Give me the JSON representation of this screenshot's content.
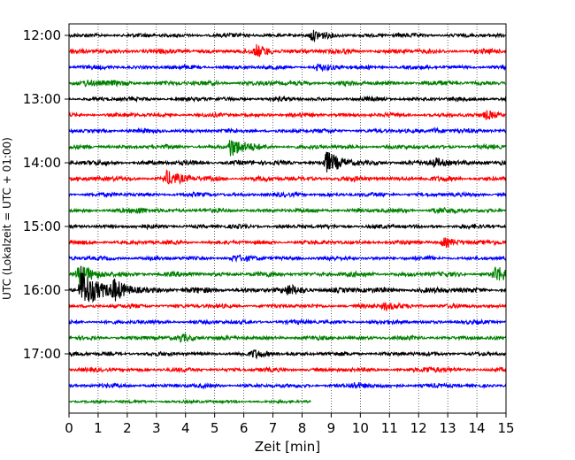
{
  "chart_data": {
    "type": "line",
    "title": "",
    "xlabel": "Zeit  [min]",
    "ylabel": "UTC (Lokalzeit = UTC + 01:00)",
    "xlim": [
      0,
      15
    ],
    "x_ticks": [
      "0",
      "1",
      "2",
      "3",
      "4",
      "5",
      "6",
      "7",
      "8",
      "9",
      "10",
      "11",
      "12",
      "13",
      "14",
      "15"
    ],
    "y_ticks": [
      {
        "label": "12:00",
        "trace": 0
      },
      {
        "label": "13:00",
        "trace": 4
      },
      {
        "label": "14:00",
        "trace": 8
      },
      {
        "label": "15:00",
        "trace": 12
      },
      {
        "label": "16:00",
        "trace": 16
      },
      {
        "label": "17:00",
        "trace": 20
      }
    ],
    "grid": "vertical dotted",
    "trace_interval_minutes": 15,
    "trace_colors": [
      "#000000",
      "#ff0000",
      "#0000ff",
      "#008000"
    ],
    "traces": [
      {
        "start": "12:00",
        "end_min": 15,
        "amp": 2.0,
        "events": [
          [
            8.3,
            5
          ]
        ]
      },
      {
        "start": "12:15",
        "end_min": 15,
        "amp": 2.5,
        "events": [
          [
            6.4,
            6
          ]
        ]
      },
      {
        "start": "12:30",
        "end_min": 15,
        "amp": 2.0,
        "events": [
          [
            8.5,
            3
          ]
        ]
      },
      {
        "start": "12:45",
        "end_min": 15,
        "amp": 2.5,
        "events": [
          [
            0.5,
            3
          ]
        ]
      },
      {
        "start": "13:00",
        "end_min": 15,
        "amp": 2.0,
        "events": []
      },
      {
        "start": "13:15",
        "end_min": 15,
        "amp": 2.0,
        "events": [
          [
            14.3,
            4
          ]
        ]
      },
      {
        "start": "13:30",
        "end_min": 15,
        "amp": 2.0,
        "events": [
          [
            12.5,
            3
          ]
        ]
      },
      {
        "start": "13:45",
        "end_min": 15,
        "amp": 2.0,
        "events": [
          [
            5.5,
            12
          ]
        ]
      },
      {
        "start": "14:00",
        "end_min": 15,
        "amp": 2.5,
        "events": [
          [
            8.8,
            12
          ],
          [
            12.5,
            5
          ]
        ]
      },
      {
        "start": "14:15",
        "end_min": 15,
        "amp": 2.5,
        "events": [
          [
            3.3,
            8
          ]
        ]
      },
      {
        "start": "14:30",
        "end_min": 15,
        "amp": 2.0,
        "events": []
      },
      {
        "start": "14:45",
        "end_min": 15,
        "amp": 2.0,
        "events": [
          [
            2.3,
            3
          ],
          [
            12.5,
            3
          ]
        ]
      },
      {
        "start": "15:00",
        "end_min": 15,
        "amp": 2.0,
        "events": []
      },
      {
        "start": "15:15",
        "end_min": 15,
        "amp": 2.0,
        "events": [
          [
            12.8,
            5
          ]
        ]
      },
      {
        "start": "15:30",
        "end_min": 15,
        "amp": 2.0,
        "events": [
          [
            5.6,
            3
          ]
        ]
      },
      {
        "start": "15:45",
        "end_min": 15,
        "amp": 2.5,
        "events": [
          [
            0.3,
            10
          ],
          [
            14.6,
            9
          ]
        ]
      },
      {
        "start": "16:00",
        "end_min": 15,
        "amp": 3.0,
        "events": [
          [
            0.4,
            28
          ],
          [
            1.5,
            10
          ],
          [
            7.5,
            4
          ]
        ]
      },
      {
        "start": "16:15",
        "end_min": 15,
        "amp": 2.0,
        "events": [
          [
            10.8,
            4
          ]
        ]
      },
      {
        "start": "16:30",
        "end_min": 15,
        "amp": 2.0,
        "events": []
      },
      {
        "start": "16:45",
        "end_min": 15,
        "amp": 2.0,
        "events": [
          [
            3.8,
            4
          ]
        ]
      },
      {
        "start": "17:00",
        "end_min": 15,
        "amp": 2.0,
        "events": [
          [
            6.3,
            4
          ]
        ]
      },
      {
        "start": "17:15",
        "end_min": 15,
        "amp": 2.0,
        "events": [
          [
            12.2,
            3
          ]
        ]
      },
      {
        "start": "17:30",
        "end_min": 15,
        "amp": 2.0,
        "events": [
          [
            9.7,
            3
          ]
        ]
      },
      {
        "start": "17:45",
        "end_min": 8.3,
        "amp": 1.2,
        "events": []
      }
    ]
  }
}
